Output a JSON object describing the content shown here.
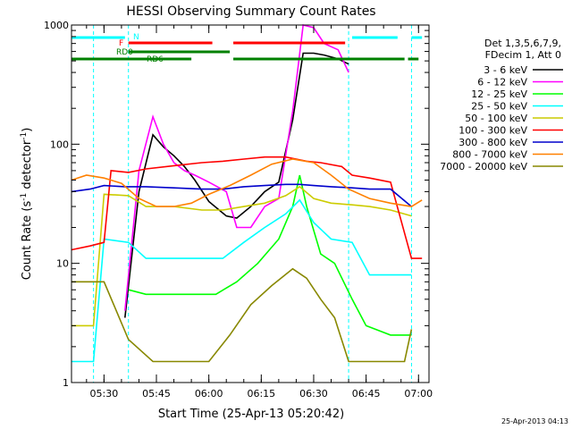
{
  "chart_data": {
    "type": "line",
    "title": "HESSI Observing Summary Count Rates",
    "xlabel": "Start Time (25-Apr-13 05:20:42)",
    "ylabel_main": "Count Rate (s",
    "ylabel_sup1": "-1",
    "ylabel_mid": " detector",
    "ylabel_sup2": "-1",
    "ylabel_end": ")",
    "x_scale": "time",
    "y_scale": "log",
    "xlim": [
      "05:20:42",
      "07:03:00"
    ],
    "ylim": [
      1,
      1000
    ],
    "x_ticks": [
      "05:30",
      "05:45",
      "06:00",
      "06:15",
      "06:30",
      "06:45",
      "07:00"
    ],
    "y_ticks": [
      "1",
      "10",
      "100",
      "1000"
    ],
    "legend_header": [
      "Det 1,3,5,6,7,9,",
      "FDecim 1, Att 0"
    ],
    "legend_position": "right",
    "footer_timestamp": "25-Apr-2013 04:13",
    "series": [
      {
        "name": "3 - 6 keV",
        "color": "#000000",
        "x": [
          "05:36:00",
          "05:40:00",
          "05:44:00",
          "05:47:00",
          "05:50:00",
          "05:53:00",
          "05:56:00",
          "06:00:00",
          "06:05:00",
          "06:08:00",
          "06:12:00",
          "06:16:00",
          "06:20:00",
          "06:24:00",
          "06:27:00",
          "06:30:00",
          "06:33:00",
          "06:37:00",
          "06:40:00"
        ],
        "y": [
          3.5,
          40,
          120,
          95,
          80,
          65,
          50,
          33,
          25,
          24,
          30,
          40,
          48,
          160,
          580,
          580,
          560,
          520,
          470
        ]
      },
      {
        "name": "6 - 12 keV",
        "color": "#ff00ff",
        "x": [
          "05:36:00",
          "05:40:00",
          "05:44:00",
          "05:47:00",
          "05:50:00",
          "05:53:00",
          "05:56:00",
          "06:00:00",
          "06:05:00",
          "06:08:00",
          "06:12:00",
          "06:16:00",
          "06:20:00",
          "06:24:00",
          "06:27:00",
          "06:30:00",
          "06:33:00",
          "06:37:00",
          "06:40:00"
        ],
        "y": [
          4,
          60,
          170,
          100,
          70,
          60,
          55,
          48,
          40,
          20,
          20,
          30,
          35,
          190,
          1000,
          950,
          700,
          620,
          400
        ]
      },
      {
        "name": "12 - 25 keV",
        "color": "#00ff00",
        "x": [
          "05:37:00",
          "05:42:00",
          "05:48:00",
          "05:55:00",
          "06:02:00",
          "06:08:00",
          "06:14:00",
          "06:20:00",
          "06:24:00",
          "06:26:00",
          "06:28:00",
          "06:32:00",
          "06:36:00",
          "06:41:00",
          "06:45:00",
          "06:52:00",
          "06:58:00"
        ],
        "y": [
          6,
          5.5,
          5.5,
          5.5,
          5.5,
          7,
          10,
          16,
          30,
          55,
          30,
          12,
          10,
          5,
          3,
          2.5,
          2.5
        ]
      },
      {
        "name": "25 - 50 keV",
        "color": "#00ffff",
        "x": [
          "05:20:42",
          "05:27:00",
          "05:30:00",
          "05:37:00",
          "05:42:00",
          "05:50:00",
          "05:58:00",
          "06:04:00",
          "06:10:00",
          "06:16:00",
          "06:22:00",
          "06:26:00",
          "06:30:00",
          "06:35:00",
          "06:41:00",
          "06:46:00",
          "06:52:00",
          "06:58:00"
        ],
        "y": [
          1.5,
          1.5,
          16,
          15,
          11,
          11,
          11,
          11,
          15,
          20,
          26,
          34,
          22,
          16,
          15,
          8,
          8,
          8
        ]
      },
      {
        "name": "50 - 100 keV",
        "color": "#cccc00",
        "x": [
          "05:20:42",
          "05:27:00",
          "05:30:00",
          "05:37:00",
          "05:42:00",
          "05:50:00",
          "05:58:00",
          "06:04:00",
          "06:10:00",
          "06:16:00",
          "06:22:00",
          "06:26:00",
          "06:30:00",
          "06:35:00",
          "06:41:00",
          "06:46:00",
          "06:52:00",
          "06:58:00"
        ],
        "y": [
          3,
          3,
          38,
          37,
          30,
          30,
          28,
          28,
          30,
          32,
          37,
          44,
          35,
          32,
          31,
          30,
          28,
          25
        ]
      },
      {
        "name": "100 - 300 keV",
        "color": "#ff0000",
        "x": [
          "05:20:42",
          "05:26:00",
          "05:30:00",
          "05:32:00",
          "05:37:00",
          "05:42:00",
          "05:50:00",
          "05:58:00",
          "06:04:00",
          "06:10:00",
          "06:16:00",
          "06:22:00",
          "06:28:00",
          "06:32:00",
          "06:38:00",
          "06:41:00",
          "06:46:00",
          "06:52:00",
          "06:58:00",
          "07:01:00"
        ],
        "y": [
          13,
          14,
          15,
          60,
          58,
          62,
          66,
          70,
          72,
          75,
          78,
          78,
          72,
          70,
          65,
          55,
          52,
          48,
          11,
          11
        ]
      },
      {
        "name": "300 - 800 keV",
        "color": "#0000cc",
        "x": [
          "05:20:42",
          "05:26:00",
          "05:30:00",
          "05:36:00",
          "05:42:00",
          "05:50:00",
          "05:58:00",
          "06:04:00",
          "06:10:00",
          "06:16:00",
          "06:22:00",
          "06:26:00",
          "06:30:00",
          "06:35:00",
          "06:41:00",
          "06:46:00",
          "06:52:00",
          "06:58:00"
        ],
        "y": [
          40,
          42,
          45,
          44,
          44,
          43,
          42,
          42,
          44,
          45,
          46,
          46,
          45,
          44,
          43,
          42,
          42,
          30
        ]
      },
      {
        "name": "800 - 7000 keV",
        "color": "#ff8000",
        "x": [
          "05:20:42",
          "05:25:00",
          "05:30:00",
          "05:35:00",
          "05:40:00",
          "05:45:00",
          "05:50:00",
          "05:55:00",
          "06:00:00",
          "06:06:00",
          "06:12:00",
          "06:18:00",
          "06:24:00",
          "06:30:00",
          "06:35:00",
          "06:40:00",
          "06:46:00",
          "06:52:00",
          "06:58:00",
          "07:01:00"
        ],
        "y": [
          50,
          55,
          52,
          47,
          35,
          30,
          30,
          32,
          38,
          45,
          55,
          68,
          75,
          70,
          55,
          42,
          35,
          32,
          30,
          34
        ]
      },
      {
        "name": "7000 - 20000 keV",
        "color": "#888800",
        "x": [
          "05:20:42",
          "05:30:00",
          "05:37:00",
          "05:44:00",
          "05:52:00",
          "06:00:00",
          "06:06:00",
          "06:12:00",
          "06:18:00",
          "06:24:00",
          "06:28:00",
          "06:32:00",
          "06:36:00",
          "06:40:00",
          "06:48:00",
          "06:56:00",
          "06:58:00"
        ],
        "y": [
          7,
          7,
          2.3,
          1.5,
          1.5,
          1.5,
          2.5,
          4.5,
          6.5,
          9,
          7.5,
          5,
          3.5,
          1.5,
          1.5,
          1.5,
          2.8
        ]
      }
    ],
    "attenuator_labels": {
      "N": "N",
      "F": "F",
      "RD0": "RD0",
      "RD6": "RD6"
    },
    "flag_bars": [
      {
        "label": "N",
        "color": "#00ffff",
        "segments": [
          [
            "05:20:42",
            "05:36:00"
          ],
          [
            "06:41:00",
            "06:54:00"
          ],
          [
            "06:58:00",
            "07:01:00"
          ]
        ]
      },
      {
        "label": "F",
        "color": "#ff0000",
        "segments": [
          [
            "05:37:00",
            "06:01:00"
          ],
          [
            "06:07:00",
            "06:39:00"
          ]
        ]
      },
      {
        "label": "RD0",
        "color": "#008000",
        "segments": [
          [
            "05:37:00",
            "06:06:00"
          ]
        ]
      },
      {
        "label": "RD6",
        "color": "#008000",
        "segments": [
          [
            "05:20:42",
            "05:55:00"
          ],
          [
            "06:07:00",
            "06:56:00"
          ],
          [
            "06:57:00",
            "07:00:00"
          ]
        ]
      }
    ],
    "vlines_cyan": [
      "05:27:00",
      "05:37:00",
      "06:40:00",
      "06:58:00"
    ]
  }
}
